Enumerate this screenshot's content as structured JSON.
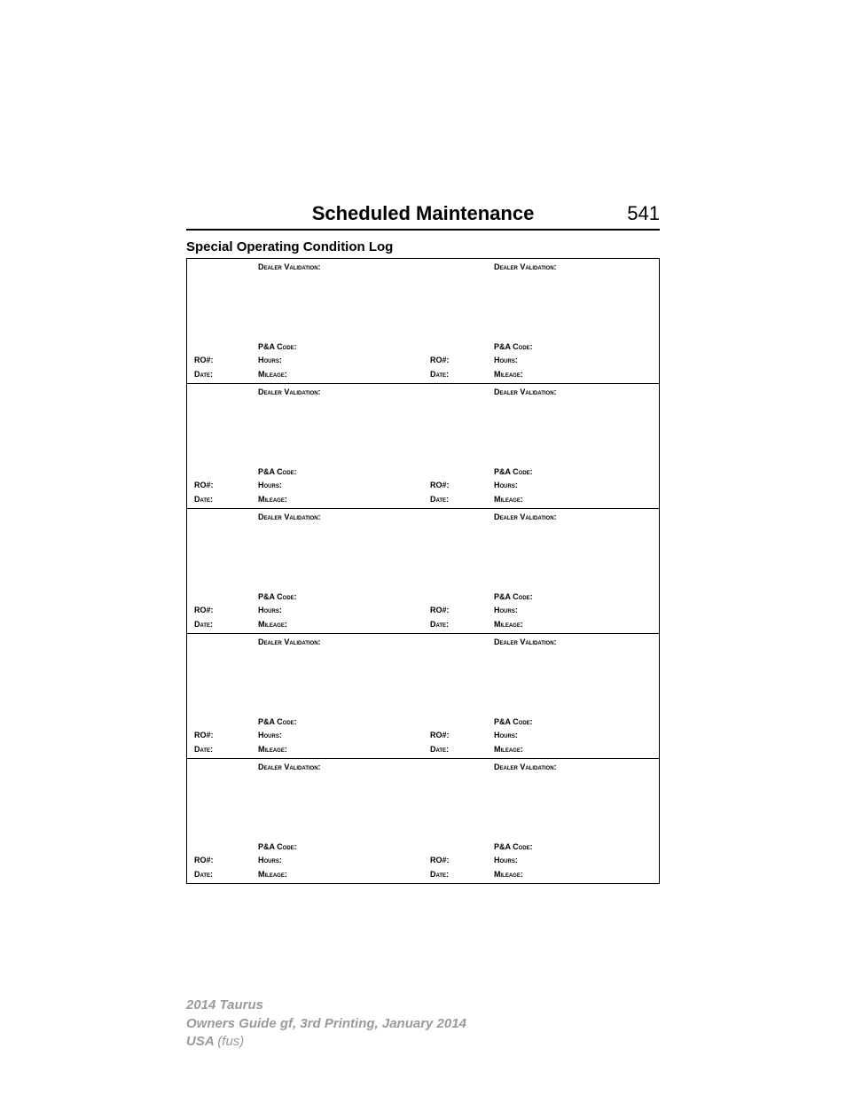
{
  "header": {
    "title": "Scheduled Maintenance",
    "page_number": "541"
  },
  "sub_heading": "Special Operating Condition Log",
  "labels": {
    "dealer_validation": "Dealer Validation:",
    "pa_code": "P&A Code:",
    "ro": "RO#:",
    "hours": "Hours:",
    "date": "Date:",
    "mileage": "Mileage:"
  },
  "grid": {
    "rows": 5,
    "cols": 2
  },
  "footer": {
    "line1": "2014 Taurus",
    "line2": "Owners Guide gf, 3rd Printing, January 2014",
    "line3a": "USA",
    "line3b": "(fus)"
  },
  "style": {
    "page_bg": "#ffffff",
    "text_color": "#000000",
    "footer_color": "#9a9a9a",
    "border_color": "#000000"
  }
}
